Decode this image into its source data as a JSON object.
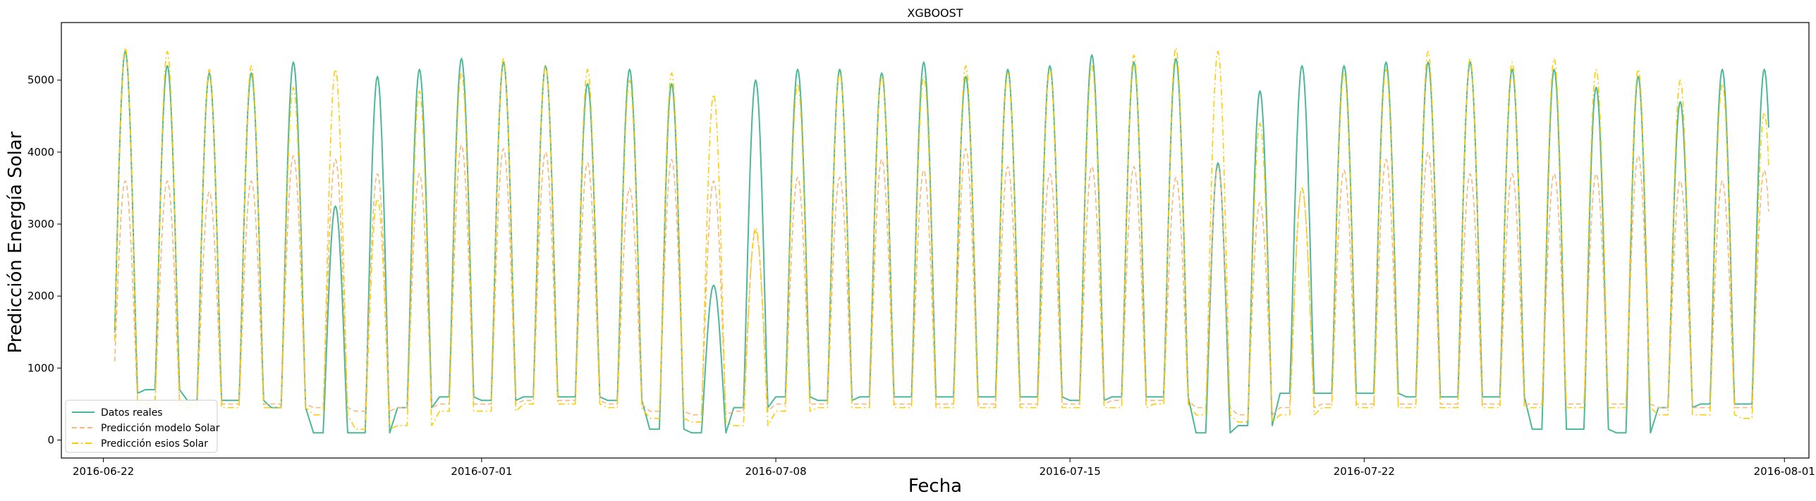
{
  "chart_data": {
    "type": "line",
    "title": "XGBOOST",
    "xlabel": "Fecha",
    "ylabel": "Predicción Energía Solar",
    "x_start": "2016-06-22",
    "days": 40,
    "xlim": [
      "2016-06-21",
      "2016-08-01T14:00"
    ],
    "ylim": [
      -250,
      5800
    ],
    "x_ticks": [
      "2016-06-22",
      "2016-07-01",
      "2016-07-08",
      "2016-07-15",
      "2016-07-22",
      "2016-08-01"
    ],
    "y_ticks": [
      0,
      1000,
      2000,
      3000,
      4000,
      5000
    ],
    "legend_position": "lower-left",
    "grid": false,
    "series": [
      {
        "name": "Datos reales",
        "color": "#4cb89a",
        "style": "solid",
        "daily_peak": [
          5400,
          5200,
          5100,
          5100,
          5250,
          3250,
          5050,
          5150,
          5300,
          5250,
          5200,
          4950,
          5150,
          4950,
          2150,
          5000,
          5150,
          5150,
          5100,
          5250,
          5050,
          5150,
          5200,
          5350,
          5250,
          5300,
          3850,
          4850,
          5200,
          5200,
          5250,
          5250,
          5250,
          5150,
          5150,
          4900,
          5050,
          4700,
          5150,
          5150
        ],
        "daily_night": [
          650,
          700,
          550,
          550,
          450,
          100,
          100,
          450,
          600,
          550,
          600,
          600,
          550,
          150,
          100,
          450,
          600,
          550,
          600,
          600,
          600,
          600,
          600,
          550,
          600,
          600,
          100,
          200,
          650,
          650,
          650,
          600,
          600,
          600,
          150,
          150,
          100,
          450,
          500,
          500
        ]
      },
      {
        "name": "Predicción modelo Solar",
        "color": "#f5b87a",
        "style": "dashed",
        "daily_peak": [
          3600,
          3600,
          3450,
          3600,
          3950,
          3900,
          3700,
          3700,
          4100,
          4050,
          4000,
          3850,
          3500,
          3900,
          3600,
          2900,
          3650,
          3650,
          3900,
          3750,
          4050,
          3800,
          3700,
          3800,
          3800,
          3650,
          3800,
          3300,
          3500,
          3750,
          3900,
          4000,
          3700,
          3700,
          3700,
          3700,
          3950,
          3600,
          3600,
          3750
        ],
        "daily_night": [
          550,
          550,
          500,
          500,
          500,
          450,
          400,
          450,
          500,
          500,
          550,
          550,
          500,
          400,
          350,
          400,
          500,
          500,
          500,
          500,
          500,
          500,
          500,
          500,
          550,
          550,
          450,
          350,
          450,
          500,
          500,
          500,
          500,
          500,
          500,
          500,
          500,
          450,
          450,
          450
        ]
      },
      {
        "name": "Predicción esios Solar",
        "color": "#ffcc00",
        "style": "dashdot",
        "daily_peak": [
          5450,
          5400,
          5150,
          5200,
          4900,
          5150,
          3350,
          4850,
          5100,
          5300,
          5200,
          5150,
          5000,
          5100,
          4800,
          2950,
          4950,
          5100,
          5050,
          5050,
          5200,
          5100,
          5150,
          5200,
          5350,
          5450,
          5400,
          4400,
          3500,
          5100,
          5150,
          5400,
          5300,
          5250,
          5300,
          5150,
          5150,
          5000,
          4950,
          4550
        ],
        "daily_night": [
          500,
          500,
          450,
          450,
          450,
          350,
          150,
          200,
          400,
          400,
          500,
          500,
          450,
          300,
          250,
          200,
          400,
          450,
          450,
          450,
          450,
          450,
          450,
          450,
          450,
          500,
          350,
          250,
          350,
          450,
          450,
          450,
          450,
          450,
          450,
          450,
          450,
          350,
          350,
          300
        ]
      }
    ]
  }
}
